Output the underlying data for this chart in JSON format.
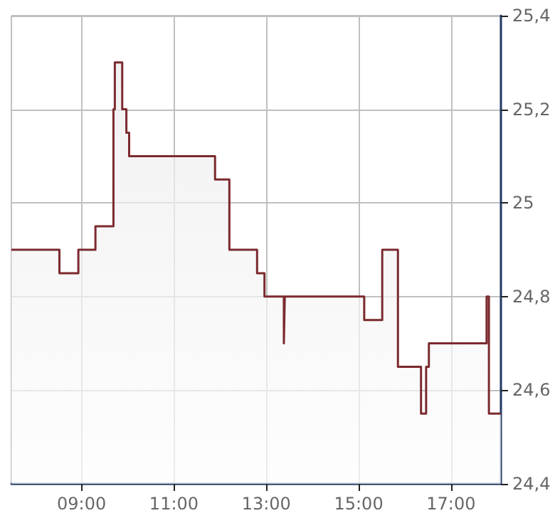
{
  "chart_data": {
    "type": "area",
    "x": [
      7.48,
      8.52,
      8.52,
      8.93,
      8.93,
      9.3,
      9.3,
      9.69,
      9.69,
      9.72,
      9.72,
      9.88,
      9.88,
      9.97,
      9.97,
      10.03,
      10.03,
      11.89,
      11.89,
      12.2,
      12.2,
      12.8,
      12.8,
      12.96,
      12.96,
      13.38,
      13.38,
      13.4,
      13.4,
      15.12,
      15.12,
      15.51,
      15.51,
      15.85,
      15.85,
      16.35,
      16.35,
      16.46,
      16.46,
      16.52,
      16.52,
      17.77,
      17.77,
      17.82,
      17.82,
      18.08
    ],
    "series": [
      {
        "color": "#7b2a2e",
        "values": [
          24.9,
          24.9,
          24.85,
          24.85,
          24.9,
          24.9,
          24.95,
          24.95,
          25.2,
          25.2,
          25.3,
          25.3,
          25.2,
          25.2,
          25.15,
          25.15,
          25.1,
          25.1,
          25.05,
          25.05,
          24.9,
          24.9,
          24.85,
          24.85,
          24.8,
          24.8,
          24.7,
          24.7,
          24.8,
          24.8,
          24.75,
          24.75,
          24.9,
          24.9,
          24.65,
          24.65,
          24.55,
          24.55,
          24.65,
          24.65,
          24.7,
          24.7,
          24.8,
          24.8,
          24.55,
          24.55
        ]
      }
    ],
    "xlim": [
      7.48,
      18.08
    ],
    "xticks": [
      {
        "value": 9,
        "label": "09:00"
      },
      {
        "value": 11,
        "label": "11:00"
      },
      {
        "value": 13,
        "label": "13:00"
      },
      {
        "value": 15,
        "label": "15:00"
      },
      {
        "value": 17,
        "label": "17:00"
      }
    ],
    "ylim": [
      24.4,
      25.4
    ],
    "yticks": [
      {
        "value": 24.4,
        "label": "24,4"
      },
      {
        "value": 24.6,
        "label": "24,6"
      },
      {
        "value": 24.8,
        "label": "24,8"
      },
      {
        "value": 25,
        "label": "25"
      },
      {
        "value": 25.2,
        "label": "25,2"
      },
      {
        "value": 25.4,
        "label": "25,4"
      }
    ],
    "grid": true,
    "marker": "none",
    "line_style": "solid"
  }
}
